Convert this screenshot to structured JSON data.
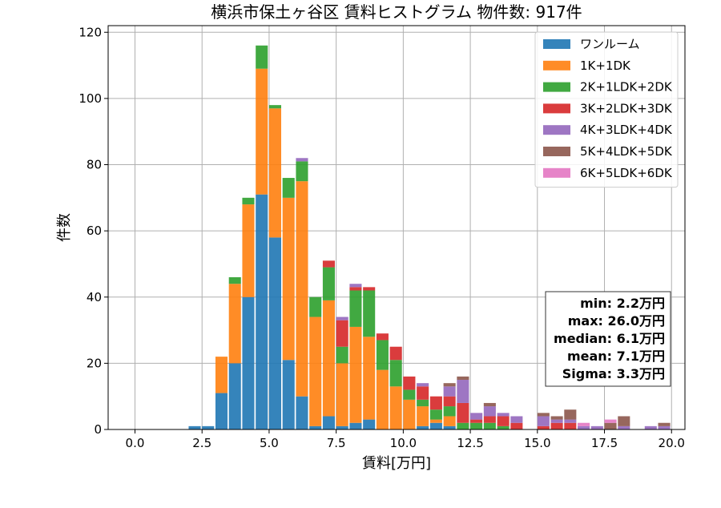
{
  "chart_data": {
    "type": "bar",
    "stacked": true,
    "title": "横浜市保土ヶ谷区 賃料ヒストグラム  物件数: 917件",
    "xlabel": "賃料[万円]",
    "ylabel": "件数",
    "xlim": [
      -1.0,
      20.5
    ],
    "ylim": [
      0,
      122
    ],
    "x_ticks": [
      "0.0",
      "2.5",
      "5.0",
      "7.5",
      "10.0",
      "12.5",
      "15.0",
      "17.5",
      "20.0"
    ],
    "x_tick_values": [
      0,
      2.5,
      5,
      7.5,
      10,
      12.5,
      15,
      17.5,
      20
    ],
    "y_ticks": [
      "0",
      "20",
      "40",
      "60",
      "80",
      "100",
      "120"
    ],
    "y_tick_values": [
      0,
      20,
      40,
      60,
      80,
      100,
      120
    ],
    "grid": true,
    "legend_position": "top-right",
    "bin_width": 0.5,
    "bins": [
      2.0,
      2.5,
      3.0,
      3.5,
      4.0,
      4.5,
      5.0,
      5.5,
      6.0,
      6.5,
      7.0,
      7.5,
      8.0,
      8.5,
      9.0,
      9.5,
      10.0,
      10.5,
      11.0,
      11.5,
      12.0,
      12.5,
      13.0,
      13.5,
      14.0,
      14.5,
      15.0,
      15.5,
      16.0,
      16.5,
      17.0,
      17.5,
      18.0,
      18.5,
      19.0,
      19.5
    ],
    "series": [
      {
        "name": "ワンルーム",
        "color": "#1f77b4",
        "values": [
          1,
          1,
          11,
          20,
          40,
          71,
          58,
          21,
          10,
          1,
          4,
          1,
          2,
          3,
          0,
          0,
          0,
          1,
          2,
          1,
          0,
          0,
          0,
          0,
          0,
          0,
          0,
          0,
          0,
          0,
          0,
          0,
          0,
          0,
          0,
          0
        ]
      },
      {
        "name": "1K+1DK",
        "color": "#ff7f0e",
        "values": [
          0,
          0,
          11,
          24,
          28,
          38,
          39,
          49,
          65,
          33,
          35,
          19,
          29,
          25,
          18,
          13,
          9,
          6,
          1,
          3,
          0,
          0,
          0,
          0,
          0,
          0,
          0,
          0,
          0,
          0,
          0,
          0,
          0,
          0,
          0,
          0
        ]
      },
      {
        "name": "2K+1LDK+2DK",
        "color": "#2ca02c",
        "values": [
          0,
          0,
          0,
          2,
          2,
          7,
          1,
          6,
          6,
          6,
          10,
          5,
          11,
          14,
          9,
          8,
          3,
          2,
          3,
          3,
          2,
          2,
          2,
          1,
          0,
          0,
          0,
          0,
          0,
          0,
          0,
          0,
          0,
          0,
          0,
          0
        ]
      },
      {
        "name": "3K+2LDK+3DK",
        "color": "#d62728",
        "values": [
          0,
          0,
          0,
          0,
          0,
          0,
          0,
          0,
          0,
          0,
          2,
          8,
          1,
          1,
          2,
          4,
          4,
          4,
          4,
          3,
          6,
          1,
          2,
          3,
          2,
          0,
          1,
          2,
          2,
          0,
          0,
          0,
          0,
          0,
          0,
          0
        ]
      },
      {
        "name": "4K+3LDK+4DK",
        "color": "#9467bd",
        "values": [
          0,
          0,
          0,
          0,
          0,
          0,
          0,
          0,
          1,
          0,
          0,
          1,
          1,
          0,
          0,
          0,
          0,
          1,
          0,
          3,
          7,
          2,
          3,
          1,
          2,
          0,
          3,
          1,
          1,
          1,
          1,
          0,
          1,
          0,
          1,
          1
        ]
      },
      {
        "name": "5K+4LDK+5DK",
        "color": "#8c564b",
        "values": [
          0,
          0,
          0,
          0,
          0,
          0,
          0,
          0,
          0,
          0,
          0,
          0,
          0,
          0,
          0,
          0,
          0,
          0,
          0,
          1,
          1,
          0,
          1,
          0,
          0,
          0,
          1,
          1,
          3,
          0,
          0,
          2,
          3,
          0,
          0,
          1
        ]
      },
      {
        "name": "6K+5LDK+6DK",
        "color": "#e377c2",
        "values": [
          0,
          0,
          0,
          0,
          0,
          0,
          0,
          0,
          0,
          0,
          0,
          0,
          0,
          0,
          0,
          0,
          0,
          0,
          0,
          0,
          0,
          0,
          0,
          0,
          0,
          0,
          0,
          0,
          0,
          1,
          0,
          1,
          0,
          0,
          0,
          0
        ]
      }
    ],
    "stats": [
      "min: 2.2万円",
      "max: 26.0万円",
      "median: 6.1万円",
      "mean: 7.1万円",
      "Sigma: 3.3万円"
    ]
  }
}
